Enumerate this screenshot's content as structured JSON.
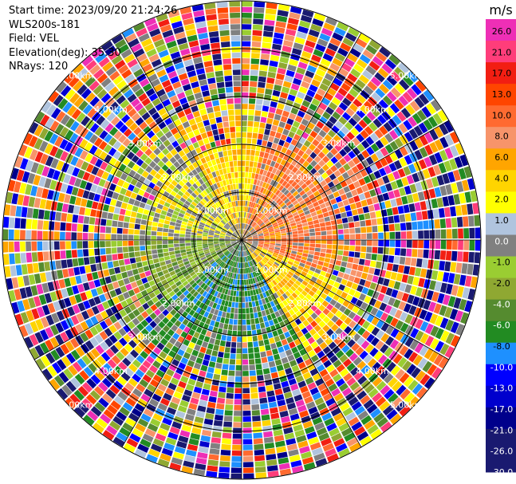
{
  "header": {
    "start_time": "Start time: 2023/09/20 21:24:26",
    "instrument": "WLS200s-181",
    "field": "Field: VEL",
    "elevation": "Elevation(deg): 35.30",
    "nrays": "NRays: 120"
  },
  "colorbar": {
    "unit": "m/s",
    "ticks": [
      "26.0",
      "21.0",
      "17.0",
      "13.0",
      "10.0",
      "8.0",
      "6.0",
      "4.0",
      "2.0",
      "1.0",
      "0.0",
      "-1.0",
      "-2.0",
      "-4.0",
      "-6.0",
      "-8.0",
      "-10.0",
      "-13.0",
      "-17.0",
      "-21.0",
      "-26.0",
      "-30.0"
    ],
    "colors": [
      "#ee2fb6",
      "#ff3d7a",
      "#f21e12",
      "#ff4500",
      "#ff6a30",
      "#f7946a",
      "#ffa500",
      "#ffd400",
      "#ffff00",
      "#b0c4de",
      "#808080",
      "#9acd32",
      "#8fa832",
      "#558b2f",
      "#228b22",
      "#1e90ff",
      "#0000ff",
      "#0000cd",
      "#00008b",
      "#191970",
      "#1a1a70"
    ]
  },
  "chart_data": {
    "type": "ppi",
    "field": "VEL",
    "unit": "m/s",
    "nrays": 120,
    "elevation_deg": 35.3,
    "range_ring_labels": [
      "1.00km",
      "2.00km",
      "3.00km",
      "4.00km",
      "5.00km"
    ],
    "color_levels": [
      26.0,
      21.0,
      17.0,
      13.0,
      10.0,
      8.0,
      6.0,
      4.0,
      2.0,
      1.0,
      0.0,
      -1.0,
      -2.0,
      -4.0,
      -6.0,
      -8.0,
      -10.0,
      -13.0,
      -17.0,
      -21.0,
      -26.0,
      -30.0
    ]
  }
}
